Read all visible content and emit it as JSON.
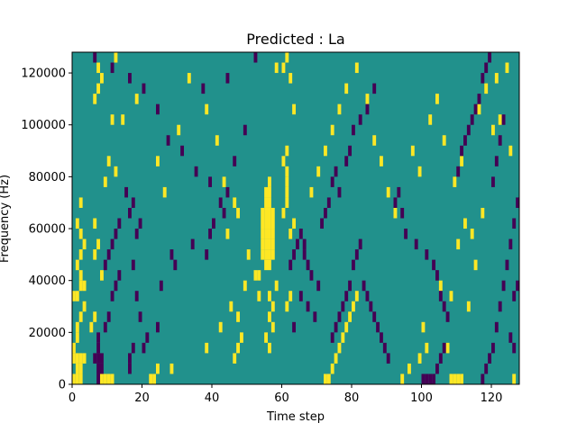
{
  "chart_data": {
    "type": "heatmap",
    "title": "Predicted : La",
    "xlabel": "Time step",
    "ylabel": "Frequency (Hz)",
    "xlim": [
      0,
      128
    ],
    "ylim": [
      0,
      128000
    ],
    "x_ticks": [
      0,
      20,
      40,
      60,
      80,
      100,
      120
    ],
    "y_ticks": [
      0,
      20000,
      40000,
      60000,
      80000,
      100000,
      120000
    ],
    "x_tick_labels": [
      "0",
      "20",
      "40",
      "60",
      "80",
      "100",
      "120"
    ],
    "y_tick_labels": [
      "0",
      "20000",
      "40000",
      "60000",
      "80000",
      "100000",
      "120000"
    ],
    "grid": false,
    "colors": {
      "background": "#21918c",
      "high": "#fde725",
      "low": "#440154"
    },
    "n_time_steps": 128,
    "n_freq_bins": 32,
    "bin_height_hz": 4000,
    "cells_high": [
      [
        0,
        3
      ],
      [
        1,
        4
      ],
      [
        1,
        5
      ],
      [
        2,
        6
      ],
      [
        3,
        7
      ],
      [
        5,
        5
      ],
      [
        6,
        6
      ],
      [
        2,
        10
      ],
      [
        1,
        11
      ],
      [
        2,
        12
      ],
      [
        3,
        13
      ],
      [
        2,
        14
      ],
      [
        1,
        15
      ],
      [
        2,
        17
      ],
      [
        0,
        0
      ],
      [
        1,
        0
      ],
      [
        2,
        0
      ],
      [
        1,
        1
      ],
      [
        2,
        1
      ],
      [
        0,
        2
      ],
      [
        1,
        2
      ],
      [
        2,
        2
      ],
      [
        3,
        2
      ],
      [
        0,
        8
      ],
      [
        1,
        8
      ],
      [
        2,
        9
      ],
      [
        3,
        9
      ],
      [
        6,
        12
      ],
      [
        7,
        13
      ],
      [
        6,
        15
      ],
      [
        8,
        0
      ],
      [
        9,
        0
      ],
      [
        10,
        0
      ],
      [
        11,
        0
      ],
      [
        8,
        10
      ],
      [
        9,
        19
      ],
      [
        10,
        21
      ],
      [
        11,
        25
      ],
      [
        6,
        27
      ],
      [
        7,
        28
      ],
      [
        8,
        29
      ],
      [
        7,
        30
      ],
      [
        12,
        31
      ],
      [
        22,
        0
      ],
      [
        23,
        0
      ],
      [
        24,
        1
      ],
      [
        28,
        1
      ],
      [
        38,
        3
      ],
      [
        46,
        2
      ],
      [
        47,
        3
      ],
      [
        48,
        4
      ],
      [
        47,
        6
      ],
      [
        49,
        9
      ],
      [
        50,
        12
      ],
      [
        52,
        10
      ],
      [
        45,
        7
      ],
      [
        42,
        5
      ],
      [
        44,
        14
      ],
      [
        47,
        16
      ],
      [
        54,
        12
      ],
      [
        54,
        13
      ],
      [
        54,
        14
      ],
      [
        54,
        15
      ],
      [
        54,
        16
      ],
      [
        55,
        11
      ],
      [
        55,
        12
      ],
      [
        55,
        13
      ],
      [
        55,
        14
      ],
      [
        55,
        15
      ],
      [
        55,
        16
      ],
      [
        55,
        17
      ],
      [
        55,
        18
      ],
      [
        56,
        11
      ],
      [
        56,
        12
      ],
      [
        56,
        13
      ],
      [
        56,
        14
      ],
      [
        56,
        15
      ],
      [
        56,
        16
      ],
      [
        56,
        17
      ],
      [
        56,
        18
      ],
      [
        56,
        19
      ],
      [
        57,
        12
      ],
      [
        57,
        13
      ],
      [
        57,
        14
      ],
      [
        57,
        15
      ],
      [
        57,
        16
      ],
      [
        56,
        8
      ],
      [
        57,
        7
      ],
      [
        56,
        6
      ],
      [
        57,
        5
      ],
      [
        55,
        4
      ],
      [
        56,
        3
      ],
      [
        58,
        9
      ],
      [
        53,
        10
      ],
      [
        53,
        8
      ],
      [
        60,
        16
      ],
      [
        61,
        17
      ],
      [
        61,
        18
      ],
      [
        61,
        19
      ],
      [
        61,
        20
      ],
      [
        60,
        21
      ],
      [
        61,
        22
      ],
      [
        62,
        14
      ],
      [
        63,
        15
      ],
      [
        62,
        8
      ],
      [
        61,
        7
      ],
      [
        63,
        26
      ],
      [
        62,
        29
      ],
      [
        61,
        31
      ],
      [
        58,
        30
      ],
      [
        60,
        30
      ],
      [
        72,
        0
      ],
      [
        73,
        0
      ],
      [
        74,
        1
      ],
      [
        75,
        2
      ],
      [
        76,
        3
      ],
      [
        77,
        4
      ],
      [
        78,
        5
      ],
      [
        79,
        6
      ],
      [
        80,
        7
      ],
      [
        81,
        8
      ],
      [
        94,
        0
      ],
      [
        96,
        1
      ],
      [
        99,
        2
      ],
      [
        101,
        3
      ],
      [
        100,
        5
      ],
      [
        105,
        9
      ],
      [
        108,
        8
      ],
      [
        110,
        13
      ],
      [
        112,
        15
      ],
      [
        114,
        14
      ],
      [
        108,
        0
      ],
      [
        109,
        0
      ],
      [
        110,
        0
      ],
      [
        111,
        0
      ],
      [
        107,
        3
      ],
      [
        113,
        7
      ],
      [
        115,
        11
      ],
      [
        117,
        16
      ],
      [
        120,
        24
      ],
      [
        121,
        29
      ],
      [
        124,
        30
      ],
      [
        126,
        0
      ],
      [
        12,
        20
      ],
      [
        14,
        25
      ],
      [
        18,
        27
      ],
      [
        24,
        21
      ],
      [
        26,
        18
      ],
      [
        30,
        24
      ],
      [
        33,
        29
      ],
      [
        38,
        26
      ],
      [
        41,
        23
      ],
      [
        43,
        19
      ],
      [
        46,
        17
      ],
      [
        68,
        18
      ],
      [
        70,
        20
      ],
      [
        72,
        22
      ],
      [
        74,
        24
      ],
      [
        76,
        26
      ],
      [
        78,
        28
      ],
      [
        81,
        30
      ],
      [
        84,
        27
      ],
      [
        86,
        23
      ],
      [
        88,
        21
      ],
      [
        90,
        18
      ],
      [
        92,
        16
      ],
      [
        97,
        22
      ],
      [
        99,
        20
      ],
      [
        102,
        25
      ],
      [
        104,
        27
      ],
      [
        106,
        23
      ],
      [
        109,
        19
      ],
      [
        111,
        21
      ],
      [
        116,
        26
      ],
      [
        118,
        28
      ],
      [
        122,
        25
      ],
      [
        125,
        22
      ]
    ],
    "cells_low": [
      [
        7,
        0
      ],
      [
        7,
        1
      ],
      [
        8,
        1
      ],
      [
        6,
        2
      ],
      [
        7,
        2
      ],
      [
        8,
        2
      ],
      [
        7,
        3
      ],
      [
        7,
        4
      ],
      [
        9,
        5
      ],
      [
        10,
        6
      ],
      [
        11,
        8
      ],
      [
        12,
        9
      ],
      [
        13,
        10
      ],
      [
        9,
        11
      ],
      [
        10,
        12
      ],
      [
        11,
        13
      ],
      [
        12,
        14
      ],
      [
        13,
        15
      ],
      [
        16,
        16
      ],
      [
        17,
        17
      ],
      [
        18,
        14
      ],
      [
        19,
        15
      ],
      [
        15,
        18
      ],
      [
        17,
        11
      ],
      [
        18,
        8
      ],
      [
        19,
        6
      ],
      [
        21,
        4
      ],
      [
        20,
        3
      ],
      [
        16,
        1
      ],
      [
        16,
        2
      ],
      [
        17,
        3
      ],
      [
        24,
        5
      ],
      [
        25,
        9
      ],
      [
        28,
        12
      ],
      [
        29,
        11
      ],
      [
        34,
        13
      ],
      [
        39,
        14
      ],
      [
        43,
        16
      ],
      [
        44,
        18
      ],
      [
        46,
        21
      ],
      [
        49,
        24
      ],
      [
        6,
        31
      ],
      [
        11,
        30
      ],
      [
        16,
        29
      ],
      [
        20,
        28
      ],
      [
        24,
        26
      ],
      [
        27,
        23
      ],
      [
        31,
        22
      ],
      [
        35,
        20
      ],
      [
        39,
        19
      ],
      [
        42,
        17
      ],
      [
        40,
        15
      ],
      [
        38,
        12
      ],
      [
        62,
        11
      ],
      [
        63,
        12
      ],
      [
        64,
        13
      ],
      [
        65,
        14
      ],
      [
        66,
        13
      ],
      [
        66,
        12
      ],
      [
        67,
        11
      ],
      [
        68,
        10
      ],
      [
        70,
        9
      ],
      [
        65,
        8
      ],
      [
        67,
        7
      ],
      [
        69,
        6
      ],
      [
        63,
        5
      ],
      [
        71,
        15
      ],
      [
        72,
        16
      ],
      [
        73,
        17
      ],
      [
        74,
        19
      ],
      [
        75,
        20
      ],
      [
        76,
        18
      ],
      [
        78,
        21
      ],
      [
        79,
        22
      ],
      [
        80,
        24
      ],
      [
        82,
        25
      ],
      [
        84,
        26
      ],
      [
        86,
        28
      ],
      [
        80,
        11
      ],
      [
        81,
        12
      ],
      [
        82,
        13
      ],
      [
        83,
        9
      ],
      [
        84,
        8
      ],
      [
        85,
        7
      ],
      [
        86,
        6
      ],
      [
        87,
        5
      ],
      [
        88,
        4
      ],
      [
        89,
        3
      ],
      [
        90,
        2
      ],
      [
        92,
        17
      ],
      [
        93,
        18
      ],
      [
        94,
        16
      ],
      [
        95,
        14
      ],
      [
        98,
        13
      ],
      [
        101,
        12
      ],
      [
        103,
        11
      ],
      [
        104,
        10
      ],
      [
        105,
        8
      ],
      [
        106,
        7
      ],
      [
        107,
        6
      ],
      [
        100,
        0
      ],
      [
        101,
        0
      ],
      [
        102,
        0
      ],
      [
        103,
        0
      ],
      [
        104,
        1
      ],
      [
        105,
        2
      ],
      [
        106,
        3
      ],
      [
        117,
        0
      ],
      [
        118,
        1
      ],
      [
        119,
        2
      ],
      [
        120,
        3
      ],
      [
        110,
        20
      ],
      [
        111,
        22
      ],
      [
        112,
        23
      ],
      [
        113,
        24
      ],
      [
        114,
        25
      ],
      [
        115,
        26
      ],
      [
        116,
        27
      ],
      [
        117,
        29
      ],
      [
        118,
        30
      ],
      [
        119,
        31
      ],
      [
        121,
        5
      ],
      [
        122,
        7
      ],
      [
        123,
        9
      ],
      [
        124,
        11
      ],
      [
        125,
        13
      ],
      [
        126,
        15
      ],
      [
        127,
        17
      ],
      [
        120,
        19
      ],
      [
        121,
        21
      ],
      [
        122,
        23
      ],
      [
        123,
        25
      ],
      [
        126,
        8
      ],
      [
        127,
        9
      ],
      [
        125,
        4
      ],
      [
        126,
        3
      ],
      [
        74,
        4
      ],
      [
        75,
        5
      ],
      [
        76,
        6
      ],
      [
        77,
        7
      ],
      [
        78,
        8
      ],
      [
        79,
        9
      ],
      [
        37,
        28
      ],
      [
        44,
        29
      ],
      [
        52,
        31
      ]
    ]
  }
}
